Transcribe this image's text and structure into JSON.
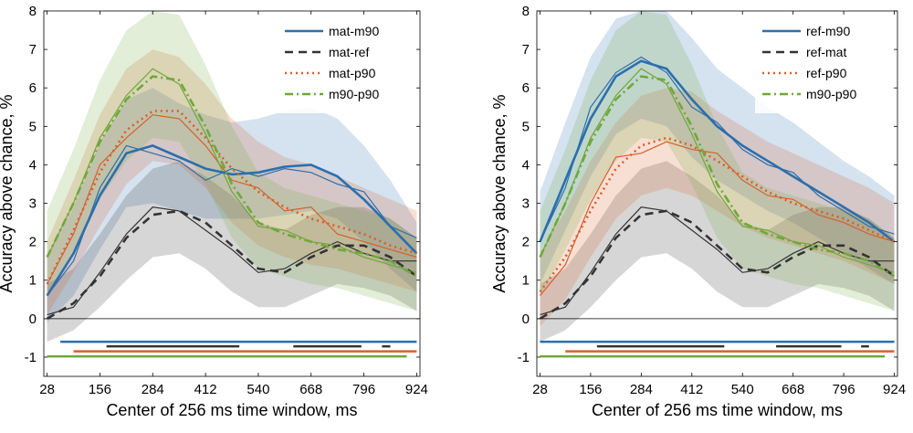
{
  "chart_data": [
    {
      "type": "line",
      "xlabel": "Center of 256 ms time window, ms",
      "ylabel": "Accuracy above chance, %",
      "xlim": [
        20,
        932
      ],
      "ylim": [
        -1.5,
        8
      ],
      "xticks": [
        28,
        156,
        284,
        412,
        540,
        668,
        796,
        924
      ],
      "yticks": [
        -1,
        0,
        1,
        2,
        3,
        4,
        5,
        6,
        7,
        8
      ],
      "legend_position": "top-right",
      "zero_line": true,
      "series": [
        {
          "name": "mat-m90",
          "color": "#2b6fad",
          "dash": "solid",
          "x": [
            28,
            92,
            156,
            220,
            284,
            348,
            412,
            476,
            540,
            604,
            668,
            732,
            796,
            860,
            924
          ],
          "y": [
            0.6,
            1.7,
            3.2,
            4.3,
            4.5,
            4.2,
            3.9,
            3.75,
            3.8,
            3.95,
            4.0,
            3.7,
            3.1,
            2.4,
            1.7
          ],
          "lower": [
            -0.1,
            0.6,
            1.8,
            2.9,
            3.0,
            2.8,
            2.6,
            2.6,
            2.6,
            2.7,
            2.8,
            2.6,
            2.0,
            1.3,
            0.7
          ],
          "upper": [
            1.6,
            2.9,
            4.6,
            5.7,
            6.0,
            5.6,
            5.3,
            5.1,
            5.2,
            5.4,
            5.5,
            5.2,
            4.5,
            3.6,
            2.5
          ],
          "raw": [
            0.6,
            1.5,
            3.4,
            4.5,
            4.3,
            4.1,
            3.6,
            3.9,
            3.7,
            3.9,
            3.8,
            3.5,
            3.3,
            2.4,
            2.1
          ]
        },
        {
          "name": "mat-ref",
          "color": "#333333",
          "dash": "dashed",
          "x": [
            28,
            92,
            156,
            220,
            284,
            348,
            412,
            476,
            540,
            604,
            668,
            732,
            796,
            860,
            924
          ],
          "y": [
            0.0,
            0.4,
            1.1,
            2.1,
            2.7,
            2.8,
            2.5,
            1.9,
            1.3,
            1.2,
            1.6,
            1.9,
            1.9,
            1.6,
            1.1
          ],
          "lower": [
            -0.6,
            -0.3,
            0.3,
            1.0,
            1.6,
            1.7,
            1.3,
            0.7,
            0.3,
            0.3,
            0.6,
            0.9,
            0.8,
            0.6,
            0.2
          ],
          "upper": [
            0.9,
            1.3,
            2.2,
            3.2,
            3.9,
            4.1,
            3.7,
            3.2,
            2.5,
            2.3,
            2.7,
            2.9,
            2.9,
            2.6,
            2.1
          ],
          "raw": [
            0.1,
            0.3,
            1.2,
            2.2,
            2.9,
            2.8,
            2.3,
            1.8,
            1.2,
            1.3,
            1.7,
            2.0,
            1.7,
            1.5,
            1.5
          ]
        },
        {
          "name": "mat-p90",
          "color": "#d95f2a",
          "dash": "dotted",
          "x": [
            28,
            92,
            156,
            220,
            284,
            348,
            412,
            476,
            540,
            604,
            668,
            732,
            796,
            860,
            924
          ],
          "y": [
            0.9,
            2.3,
            3.8,
            4.9,
            5.4,
            5.4,
            4.7,
            3.9,
            3.3,
            2.9,
            2.6,
            2.4,
            2.2,
            1.9,
            1.7
          ],
          "lower": [
            0.1,
            1.2,
            2.4,
            3.5,
            4.1,
            4.0,
            3.4,
            2.5,
            1.9,
            1.6,
            1.4,
            1.3,
            1.1,
            0.9,
            0.7
          ],
          "upper": [
            2.0,
            3.6,
            5.3,
            6.5,
            7.0,
            6.8,
            6.1,
            5.2,
            4.6,
            4.2,
            4.0,
            3.7,
            3.4,
            3.1,
            2.8
          ],
          "raw": [
            0.9,
            2.2,
            4.0,
            4.7,
            5.3,
            5.2,
            4.5,
            3.6,
            3.4,
            2.8,
            2.9,
            2.2,
            2.0,
            1.8,
            1.6
          ]
        },
        {
          "name": "m90-p90",
          "color": "#6fa83a",
          "dash": "dashdot",
          "x": [
            28,
            92,
            156,
            220,
            284,
            348,
            412,
            476,
            540,
            604,
            668,
            732,
            796,
            860,
            924
          ],
          "y": [
            1.6,
            3.0,
            4.6,
            5.7,
            6.3,
            6.2,
            5.0,
            3.5,
            2.5,
            2.2,
            2.0,
            1.8,
            1.7,
            1.5,
            1.1
          ],
          "lower": [
            0.6,
            1.8,
            3.1,
            4.1,
            4.7,
            4.6,
            3.5,
            2.1,
            1.3,
            1.1,
            0.9,
            0.8,
            0.6,
            0.4,
            0.2
          ],
          "upper": [
            2.8,
            4.4,
            6.2,
            7.5,
            8.0,
            7.9,
            6.6,
            5.0,
            3.8,
            3.4,
            3.2,
            3.0,
            2.8,
            2.6,
            2.1
          ],
          "raw": [
            1.6,
            3.0,
            4.7,
            5.8,
            6.5,
            6.1,
            4.8,
            3.3,
            2.4,
            2.3,
            2.0,
            1.9,
            1.6,
            1.4,
            1.2
          ]
        }
      ],
      "significance_bars": [
        {
          "series": "mat-m90",
          "color": "#2b6fad",
          "y": -0.6,
          "segments": [
            [
              60,
              924
            ]
          ]
        },
        {
          "series": "mat-ref",
          "color": "#333333",
          "y": -0.72,
          "segments": [
            [
              172,
              494
            ],
            [
              625,
              790
            ],
            [
              840,
              860
            ]
          ]
        },
        {
          "series": "mat-p90",
          "color": "#d95f2a",
          "y": -0.85,
          "segments": [
            [
              92,
              924
            ]
          ]
        },
        {
          "series": "m90-p90",
          "color": "#6fa83a",
          "y": -0.98,
          "segments": [
            [
              28,
              900
            ]
          ]
        }
      ]
    },
    {
      "type": "line",
      "xlabel": "Center of 256 ms time window, ms",
      "ylabel": "Accuracy above chance, %",
      "xlim": [
        20,
        932
      ],
      "ylim": [
        -1.5,
        8
      ],
      "xticks": [
        28,
        156,
        284,
        412,
        540,
        668,
        796,
        924
      ],
      "yticks": [
        -1,
        0,
        1,
        2,
        3,
        4,
        5,
        6,
        7,
        8
      ],
      "legend_position": "top-right",
      "zero_line": true,
      "series": [
        {
          "name": "ref-m90",
          "color": "#2b6fad",
          "dash": "solid",
          "x": [
            28,
            92,
            156,
            220,
            284,
            348,
            412,
            476,
            540,
            604,
            668,
            732,
            796,
            860,
            924
          ],
          "y": [
            2.0,
            3.6,
            5.2,
            6.3,
            6.7,
            6.5,
            5.7,
            5.0,
            4.5,
            4.1,
            3.7,
            3.3,
            2.9,
            2.5,
            2.0
          ],
          "lower": [
            0.9,
            2.3,
            3.7,
            4.8,
            5.2,
            5.0,
            4.2,
            3.6,
            3.2,
            2.8,
            2.5,
            2.1,
            1.7,
            1.3,
            0.9
          ],
          "upper": [
            3.3,
            5.1,
            6.8,
            7.8,
            8.0,
            8.0,
            7.3,
            6.5,
            6.0,
            5.5,
            5.1,
            4.6,
            4.1,
            3.7,
            3.2
          ],
          "raw": [
            2.0,
            3.4,
            5.5,
            6.4,
            6.8,
            6.4,
            5.5,
            5.1,
            4.4,
            4.0,
            3.8,
            3.2,
            2.8,
            2.4,
            2.2
          ]
        },
        {
          "name": "ref-mat",
          "color": "#333333",
          "dash": "dashed",
          "x": [
            28,
            92,
            156,
            220,
            284,
            348,
            412,
            476,
            540,
            604,
            668,
            732,
            796,
            860,
            924
          ],
          "y": [
            0.0,
            0.4,
            1.1,
            2.1,
            2.7,
            2.8,
            2.5,
            1.9,
            1.3,
            1.2,
            1.6,
            1.9,
            1.9,
            1.6,
            1.1
          ],
          "lower": [
            -0.6,
            -0.3,
            0.3,
            1.0,
            1.6,
            1.7,
            1.3,
            0.7,
            0.3,
            0.3,
            0.6,
            0.9,
            0.8,
            0.6,
            0.2
          ],
          "upper": [
            0.9,
            1.3,
            2.2,
            3.2,
            3.9,
            4.1,
            3.7,
            3.2,
            2.5,
            2.3,
            2.7,
            2.9,
            2.9,
            2.6,
            2.1
          ],
          "raw": [
            0.1,
            0.3,
            1.2,
            2.2,
            2.9,
            2.8,
            2.3,
            1.8,
            1.2,
            1.3,
            1.7,
            2.0,
            1.7,
            1.5,
            1.5
          ]
        },
        {
          "name": "ref-p90",
          "color": "#d95f2a",
          "dash": "dotted",
          "x": [
            28,
            92,
            156,
            220,
            284,
            348,
            412,
            476,
            540,
            604,
            668,
            732,
            796,
            860,
            924
          ],
          "y": [
            0.7,
            1.6,
            2.8,
            3.9,
            4.5,
            4.7,
            4.5,
            4.1,
            3.7,
            3.3,
            3.0,
            2.8,
            2.6,
            2.3,
            2.0
          ],
          "lower": [
            -0.2,
            0.5,
            1.6,
            2.6,
            3.2,
            3.4,
            3.2,
            2.8,
            2.4,
            2.1,
            1.9,
            1.7,
            1.5,
            1.2,
            0.9
          ],
          "upper": [
            1.7,
            2.8,
            4.1,
            5.1,
            5.8,
            6.0,
            5.9,
            5.4,
            5.0,
            4.6,
            4.3,
            4.0,
            3.7,
            3.4,
            3.0
          ],
          "raw": [
            0.6,
            1.4,
            3.0,
            4.2,
            4.3,
            4.6,
            4.4,
            4.3,
            3.6,
            3.2,
            3.1,
            2.7,
            2.5,
            2.2,
            2.0
          ]
        },
        {
          "name": "m90-p90",
          "color": "#6fa83a",
          "dash": "dashdot",
          "x": [
            28,
            92,
            156,
            220,
            284,
            348,
            412,
            476,
            540,
            604,
            668,
            732,
            796,
            860,
            924
          ],
          "y": [
            1.6,
            3.0,
            4.6,
            5.7,
            6.3,
            6.2,
            5.0,
            3.5,
            2.5,
            2.2,
            2.0,
            1.8,
            1.7,
            1.5,
            1.1
          ],
          "lower": [
            0.6,
            1.8,
            3.1,
            4.1,
            4.7,
            4.6,
            3.5,
            2.1,
            1.3,
            1.1,
            0.9,
            0.8,
            0.6,
            0.4,
            0.2
          ],
          "upper": [
            2.8,
            4.4,
            6.2,
            7.5,
            8.0,
            7.9,
            6.6,
            5.0,
            3.8,
            3.4,
            3.2,
            3.0,
            2.8,
            2.6,
            2.1
          ],
          "raw": [
            1.6,
            3.0,
            4.7,
            5.8,
            6.5,
            6.1,
            4.8,
            3.3,
            2.4,
            2.3,
            2.0,
            1.9,
            1.6,
            1.4,
            1.2
          ]
        }
      ],
      "significance_bars": [
        {
          "series": "ref-m90",
          "color": "#2b6fad",
          "y": -0.6,
          "segments": [
            [
              28,
              924
            ]
          ]
        },
        {
          "series": "ref-mat",
          "color": "#333333",
          "y": -0.72,
          "segments": [
            [
              172,
              494
            ],
            [
              625,
              790
            ],
            [
              840,
              860
            ]
          ]
        },
        {
          "series": "ref-p90",
          "color": "#d95f2a",
          "y": -0.85,
          "segments": [
            [
              92,
              924
            ]
          ]
        },
        {
          "series": "m90-p90",
          "color": "#6fa83a",
          "y": -0.98,
          "segments": [
            [
              28,
              900
            ]
          ]
        }
      ]
    }
  ]
}
